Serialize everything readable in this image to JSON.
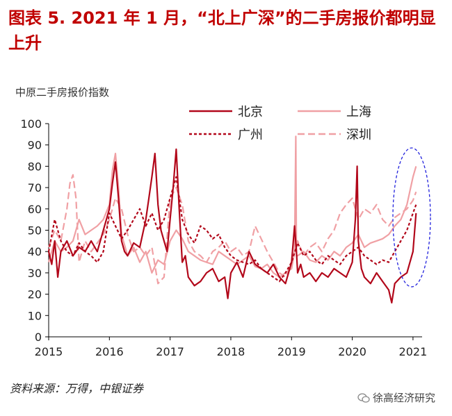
{
  "header": {
    "title": "图表 5. 2021 年 1 月，“北上广深”的二手房报价都明显上升"
  },
  "footer": {
    "source": "资料来源：万得，中银证券",
    "watermark": "徐高经济研究"
  },
  "colors": {
    "beijing": "#b2071a",
    "shanghai": "#f0a0a4",
    "guangzhou": "#b2071a",
    "shenzhen": "#f0a0a4",
    "highlight_ellipse": "#2222dd",
    "title": "#c00000"
  },
  "chart_data": {
    "type": "line",
    "ylabel": "中原二手房报价指数",
    "ylim": [
      0,
      100
    ],
    "yticks": [
      0,
      10,
      20,
      30,
      40,
      50,
      60,
      70,
      80,
      90,
      100
    ],
    "xlim": [
      2015,
      2021.15
    ],
    "xticks": [
      "2015",
      "2016",
      "2017",
      "2018",
      "2019",
      "2020",
      "2021"
    ],
    "grid": false,
    "legend_position": "top",
    "annotation": "dashed blue ellipse highlighting late 2020 – early 2021",
    "series": [
      {
        "name": "北京",
        "style": "solid-dark",
        "x": [
          2015.0,
          2015.05,
          2015.1,
          2015.15,
          2015.2,
          2015.3,
          2015.4,
          2015.5,
          2015.6,
          2015.7,
          2015.8,
          2015.9,
          2016.0,
          2016.05,
          2016.1,
          2016.15,
          2016.2,
          2016.25,
          2016.3,
          2016.4,
          2016.5,
          2016.6,
          2016.65,
          2016.7,
          2016.75,
          2016.8,
          2016.85,
          2016.9,
          2016.95,
          2017.0,
          2017.05,
          2017.1,
          2017.15,
          2017.2,
          2017.25,
          2017.3,
          2017.4,
          2017.5,
          2017.6,
          2017.7,
          2017.8,
          2017.9,
          2017.95,
          2018.0,
          2018.1,
          2018.2,
          2018.3,
          2018.4,
          2018.5,
          2018.6,
          2018.7,
          2018.8,
          2018.9,
          2019.0,
          2019.05,
          2019.08,
          2019.1,
          2019.15,
          2019.2,
          2019.3,
          2019.4,
          2019.5,
          2019.6,
          2019.7,
          2019.8,
          2019.9,
          2020.0,
          2020.05,
          2020.08,
          2020.1,
          2020.15,
          2020.2,
          2020.3,
          2020.4,
          2020.5,
          2020.6,
          2020.65,
          2020.7,
          2020.8,
          2020.9,
          2021.0,
          2021.05
        ],
        "y": [
          40,
          34,
          45,
          28,
          40,
          45,
          38,
          42,
          40,
          45,
          40,
          50,
          60,
          72,
          82,
          65,
          45,
          40,
          38,
          44,
          42,
          55,
          65,
          75,
          86,
          62,
          50,
          45,
          40,
          55,
          70,
          88,
          60,
          35,
          38,
          28,
          24,
          26,
          30,
          32,
          26,
          28,
          18,
          30,
          35,
          28,
          40,
          34,
          32,
          30,
          34,
          28,
          25,
          35,
          52,
          40,
          30,
          34,
          28,
          30,
          26,
          30,
          28,
          32,
          30,
          28,
          35,
          55,
          80,
          45,
          32,
          28,
          25,
          30,
          26,
          22,
          16,
          25,
          28,
          30,
          40,
          58
        ]
      },
      {
        "name": "上海",
        "style": "solid-light",
        "x": [
          2015.0,
          2015.1,
          2015.2,
          2015.3,
          2015.4,
          2015.5,
          2015.6,
          2015.7,
          2015.8,
          2015.9,
          2016.0,
          2016.05,
          2016.1,
          2016.15,
          2016.2,
          2016.3,
          2016.4,
          2016.5,
          2016.6,
          2016.7,
          2016.8,
          2016.9,
          2017.0,
          2017.1,
          2017.2,
          2017.3,
          2017.4,
          2017.5,
          2017.6,
          2017.7,
          2017.8,
          2017.9,
          2018.0,
          2018.1,
          2018.2,
          2018.3,
          2018.4,
          2018.5,
          2018.6,
          2018.7,
          2018.8,
          2018.9,
          2019.0,
          2019.05,
          2019.07,
          2019.08,
          2019.1,
          2019.2,
          2019.3,
          2019.4,
          2019.5,
          2019.6,
          2019.7,
          2019.8,
          2019.9,
          2020.0,
          2020.1,
          2020.2,
          2020.3,
          2020.4,
          2020.5,
          2020.6,
          2020.7,
          2020.8,
          2020.9,
          2021.0,
          2021.05
        ],
        "y": [
          35,
          45,
          40,
          42,
          45,
          55,
          48,
          50,
          52,
          55,
          62,
          78,
          86,
          70,
          48,
          38,
          42,
          35,
          40,
          30,
          36,
          34,
          45,
          50,
          46,
          40,
          38,
          36,
          35,
          34,
          40,
          38,
          36,
          34,
          36,
          38,
          33,
          32,
          34,
          30,
          28,
          30,
          32,
          40,
          94,
          38,
          38,
          40,
          36,
          35,
          38,
          36,
          40,
          38,
          42,
          44,
          48,
          42,
          44,
          45,
          46,
          48,
          52,
          55,
          62,
          75,
          80
        ]
      },
      {
        "name": "广州",
        "style": "dashed-dark",
        "x": [
          2015.0,
          2015.1,
          2015.2,
          2015.3,
          2015.4,
          2015.5,
          2015.6,
          2015.7,
          2015.8,
          2015.9,
          2016.0,
          2016.1,
          2016.2,
          2016.3,
          2016.4,
          2016.5,
          2016.6,
          2016.7,
          2016.8,
          2016.9,
          2017.0,
          2017.1,
          2017.2,
          2017.3,
          2017.4,
          2017.5,
          2017.6,
          2017.7,
          2017.8,
          2017.9,
          2018.0,
          2018.1,
          2018.2,
          2018.3,
          2018.4,
          2018.5,
          2018.6,
          2018.7,
          2018.8,
          2018.9,
          2019.0,
          2019.1,
          2019.2,
          2019.3,
          2019.4,
          2019.5,
          2019.6,
          2019.7,
          2019.8,
          2019.9,
          2020.0,
          2020.1,
          2020.2,
          2020.3,
          2020.4,
          2020.5,
          2020.6,
          2020.7,
          2020.8,
          2020.9,
          2021.0,
          2021.05
        ],
        "y": [
          40,
          55,
          45,
          40,
          38,
          44,
          40,
          38,
          35,
          40,
          58,
          52,
          46,
          50,
          55,
          60,
          52,
          58,
          50,
          55,
          65,
          75,
          55,
          48,
          44,
          52,
          50,
          46,
          48,
          42,
          38,
          36,
          35,
          34,
          36,
          32,
          30,
          28,
          26,
          30,
          35,
          44,
          38,
          40,
          36,
          34,
          38,
          36,
          34,
          38,
          40,
          42,
          38,
          36,
          34,
          36,
          35,
          40,
          45,
          50,
          58,
          62
        ]
      },
      {
        "name": "深圳",
        "style": "dashed-light",
        "x": [
          2015.0,
          2015.1,
          2015.2,
          2015.3,
          2015.35,
          2015.4,
          2015.45,
          2015.5,
          2015.6,
          2015.7,
          2015.8,
          2015.9,
          2016.0,
          2016.1,
          2016.2,
          2016.3,
          2016.4,
          2016.5,
          2016.6,
          2016.7,
          2016.8,
          2016.9,
          2017.0,
          2017.1,
          2017.2,
          2017.3,
          2017.4,
          2017.5,
          2017.6,
          2017.7,
          2017.8,
          2017.9,
          2018.0,
          2018.1,
          2018.2,
          2018.3,
          2018.4,
          2018.5,
          2018.6,
          2018.7,
          2018.8,
          2018.9,
          2019.0,
          2019.1,
          2019.2,
          2019.3,
          2019.4,
          2019.5,
          2019.6,
          2019.7,
          2019.8,
          2019.9,
          2020.0,
          2020.1,
          2020.2,
          2020.3,
          2020.4,
          2020.5,
          2020.6,
          2020.7,
          2020.8,
          2020.9,
          2021.0,
          2021.05
        ],
        "y": [
          42,
          50,
          45,
          60,
          72,
          76,
          65,
          35,
          45,
          40,
          44,
          48,
          55,
          65,
          60,
          48,
          40,
          42,
          38,
          42,
          25,
          28,
          65,
          70,
          62,
          45,
          40,
          38,
          35,
          40,
          42,
          45,
          40,
          42,
          38,
          40,
          52,
          46,
          40,
          35,
          30,
          28,
          35,
          45,
          38,
          42,
          44,
          40,
          46,
          50,
          58,
          62,
          65,
          55,
          60,
          58,
          62,
          55,
          52,
          56,
          58,
          60,
          64,
          68
        ]
      }
    ]
  }
}
